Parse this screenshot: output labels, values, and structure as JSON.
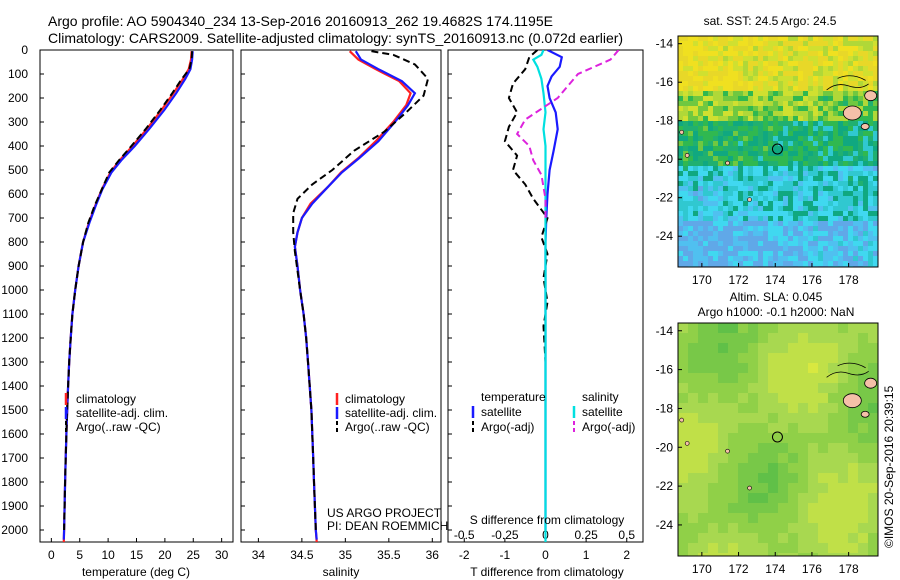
{
  "header": {
    "line1": "Argo profile: AO 5904340_234 13-Sep-2016 20160913_262 19.4682S 174.1195E",
    "line2": "Climatology: CARS2009. Satellite-adjusted climatology: synTS_20160913.nc (0.072d earlier)"
  },
  "colors": {
    "climatology": "#ff2020",
    "satellite_adj": "#1a1aff",
    "argo": "#000000",
    "s_satellite": "#00e0e0",
    "s_argo": "#dd22dd",
    "land": "#f5c0a8"
  },
  "chart_data": [
    {
      "type": "line",
      "panel": "temperature",
      "xlabel": "temperature (deg C)",
      "xlim": [
        -2,
        32
      ],
      "ylim": [
        2050,
        0
      ],
      "xticks": [
        "0",
        "5",
        "10",
        "15",
        "20",
        "25",
        "30"
      ],
      "yticks": [
        "0",
        "100",
        "200",
        "300",
        "400",
        "500",
        "600",
        "700",
        "800",
        "900",
        "1000",
        "1100",
        "1200",
        "1300",
        "1400",
        "1500",
        "1600",
        "1700",
        "1800",
        "1900",
        "2000"
      ],
      "legend": [
        "climatology",
        "satellite-adj. clim.",
        "Argo(..raw -QC)"
      ],
      "series": [
        {
          "name": "climatology",
          "color": "#ff2020",
          "points": [
            [
              24.7,
              5
            ],
            [
              24.6,
              40
            ],
            [
              24.2,
              80
            ],
            [
              23.2,
              120
            ],
            [
              21.5,
              180
            ],
            [
              19.4,
              250
            ],
            [
              16.8,
              330
            ],
            [
              14.3,
              400
            ],
            [
              12.0,
              460
            ],
            [
              10.4,
              510
            ],
            [
              8.9,
              580
            ],
            [
              7.7,
              650
            ],
            [
              6.6,
              720
            ],
            [
              5.6,
              800
            ],
            [
              4.8,
              900
            ],
            [
              4.2,
              1000
            ],
            [
              3.7,
              1100
            ],
            [
              3.4,
              1200
            ],
            [
              3.15,
              1300
            ],
            [
              2.95,
              1400
            ],
            [
              2.8,
              1500
            ],
            [
              2.65,
              1600
            ],
            [
              2.52,
              1700
            ],
            [
              2.42,
              1800
            ],
            [
              2.33,
              1900
            ],
            [
              2.25,
              2000
            ],
            [
              2.2,
              2050
            ]
          ]
        },
        {
          "name": "satellite-adj. clim.",
          "color": "#1a1aff",
          "points": [
            [
              24.9,
              5
            ],
            [
              24.8,
              40
            ],
            [
              24.5,
              80
            ],
            [
              23.6,
              120
            ],
            [
              22.0,
              180
            ],
            [
              19.9,
              250
            ],
            [
              17.2,
              330
            ],
            [
              14.7,
              400
            ],
            [
              12.3,
              460
            ],
            [
              10.6,
              510
            ],
            [
              9.0,
              580
            ],
            [
              7.8,
              650
            ],
            [
              6.7,
              720
            ],
            [
              5.6,
              800
            ],
            [
              4.8,
              900
            ],
            [
              4.2,
              1000
            ],
            [
              3.7,
              1100
            ],
            [
              3.4,
              1200
            ],
            [
              3.15,
              1300
            ],
            [
              2.95,
              1400
            ],
            [
              2.8,
              1500
            ],
            [
              2.65,
              1600
            ],
            [
              2.52,
              1700
            ],
            [
              2.42,
              1800
            ],
            [
              2.33,
              1900
            ],
            [
              2.25,
              2000
            ],
            [
              2.2,
              2040
            ]
          ]
        },
        {
          "name": "Argo(..raw -QC)",
          "color": "#000000",
          "dashed": true,
          "points": [
            [
              24.8,
              5
            ],
            [
              24.7,
              40
            ],
            [
              24.3,
              80
            ],
            [
              23.0,
              120
            ],
            [
              21.3,
              180
            ],
            [
              19.2,
              250
            ],
            [
              16.6,
              330
            ],
            [
              14.1,
              400
            ],
            [
              11.9,
              460
            ],
            [
              10.2,
              510
            ],
            [
              8.9,
              580
            ],
            [
              7.6,
              650
            ],
            [
              6.5,
              720
            ],
            [
              5.6,
              800
            ],
            [
              4.8,
              900
            ],
            [
              4.2,
              1000
            ],
            [
              3.7,
              1100
            ],
            [
              3.4,
              1200
            ],
            [
              3.15,
              1300
            ],
            [
              2.95,
              1400
            ],
            [
              2.8,
              1500
            ],
            [
              2.65,
              1600
            ],
            [
              2.52,
              1700
            ],
            [
              2.42,
              1800
            ],
            [
              2.33,
              1900
            ],
            [
              2.25,
              2000
            ]
          ]
        }
      ]
    },
    {
      "type": "line",
      "panel": "salinity",
      "xlabel": "salinity",
      "xlim": [
        33.8,
        36.1
      ],
      "ylim": [
        2050,
        0
      ],
      "xticks": [
        "34",
        "34.5",
        "35",
        "35.5",
        "36"
      ],
      "legend": [
        "climatology",
        "satellite-adj. clim.",
        "Argo(..raw -QC)"
      ],
      "annotations": [
        "US ARGO PROJECT",
        "PI: DEAN ROEMMICH"
      ],
      "series": [
        {
          "name": "climatology",
          "color": "#ff2020",
          "points": [
            [
              35.05,
              5
            ],
            [
              35.15,
              40
            ],
            [
              35.35,
              80
            ],
            [
              35.62,
              130
            ],
            [
              35.75,
              180
            ],
            [
              35.7,
              230
            ],
            [
              35.55,
              300
            ],
            [
              35.35,
              380
            ],
            [
              35.15,
              450
            ],
            [
              34.95,
              510
            ],
            [
              34.8,
              570
            ],
            [
              34.6,
              640
            ],
            [
              34.5,
              700
            ],
            [
              34.45,
              760
            ],
            [
              34.42,
              820
            ],
            [
              34.45,
              900
            ],
            [
              34.48,
              1000
            ],
            [
              34.52,
              1100
            ],
            [
              34.55,
              1200
            ],
            [
              34.57,
              1300
            ],
            [
              34.59,
              1400
            ],
            [
              34.61,
              1500
            ],
            [
              34.62,
              1600
            ],
            [
              34.63,
              1700
            ],
            [
              34.64,
              1800
            ],
            [
              34.65,
              1900
            ],
            [
              34.66,
              2000
            ],
            [
              34.67,
              2050
            ]
          ]
        },
        {
          "name": "satellite-adj. clim.",
          "color": "#1a1aff",
          "points": [
            [
              35.12,
              5
            ],
            [
              35.18,
              40
            ],
            [
              35.38,
              80
            ],
            [
              35.65,
              130
            ],
            [
              35.8,
              180
            ],
            [
              35.72,
              230
            ],
            [
              35.57,
              300
            ],
            [
              35.38,
              380
            ],
            [
              35.16,
              450
            ],
            [
              34.96,
              510
            ],
            [
              34.8,
              570
            ],
            [
              34.62,
              640
            ],
            [
              34.5,
              700
            ],
            [
              34.45,
              760
            ],
            [
              34.42,
              820
            ],
            [
              34.45,
              900
            ],
            [
              34.48,
              1000
            ],
            [
              34.52,
              1100
            ],
            [
              34.55,
              1200
            ],
            [
              34.57,
              1300
            ],
            [
              34.59,
              1400
            ],
            [
              34.61,
              1500
            ],
            [
              34.62,
              1600
            ],
            [
              34.63,
              1700
            ],
            [
              34.64,
              1800
            ],
            [
              34.65,
              1900
            ],
            [
              34.66,
              2000
            ],
            [
              34.67,
              2040
            ]
          ]
        },
        {
          "name": "Argo(..raw -QC)",
          "color": "#000000",
          "dashed": true,
          "points": [
            [
              35.3,
              5
            ],
            [
              35.55,
              20
            ],
            [
              35.8,
              60
            ],
            [
              35.95,
              120
            ],
            [
              35.9,
              190
            ],
            [
              35.7,
              260
            ],
            [
              35.45,
              340
            ],
            [
              35.1,
              420
            ],
            [
              34.85,
              500
            ],
            [
              34.62,
              560
            ],
            [
              34.45,
              620
            ],
            [
              34.4,
              680
            ],
            [
              34.4,
              760
            ],
            [
              34.42,
              840
            ],
            [
              34.45,
              920
            ],
            [
              34.48,
              1000
            ],
            [
              34.52,
              1100
            ],
            [
              34.55,
              1200
            ],
            [
              34.57,
              1300
            ],
            [
              34.59,
              1400
            ],
            [
              34.61,
              1500
            ],
            [
              34.62,
              1600
            ],
            [
              34.63,
              1700
            ],
            [
              34.64,
              1800
            ],
            [
              34.65,
              1900
            ],
            [
              34.66,
              2000
            ]
          ]
        }
      ]
    },
    {
      "type": "line",
      "panel": "difference",
      "xlabel": "T difference from climatology",
      "xlabel_top": "S difference from climatology",
      "xlim": [
        -2.4,
        2.4
      ],
      "ylim": [
        2050,
        0
      ],
      "xticks_bottom": [
        "-2",
        "-1",
        "0",
        "1",
        "2"
      ],
      "xticks_top": [
        "-0.5",
        "-0.25",
        "0",
        "0.25",
        "0.5"
      ],
      "legend": {
        "temperature_header": "temperature",
        "salinity_header": "salinity",
        "items": [
          "satellite",
          "Argo(-adj)",
          "satellite",
          "Argo(-adj)"
        ]
      },
      "series": [
        {
          "name": "temperature satellite",
          "color": "#1a1aff",
          "points": [
            [
              0.05,
              0
            ],
            [
              0.4,
              30
            ],
            [
              0.35,
              70
            ],
            [
              0.15,
              110
            ],
            [
              0.05,
              150
            ],
            [
              0.1,
              200
            ],
            [
              0.25,
              260
            ],
            [
              0.3,
              330
            ],
            [
              0.2,
              420
            ],
            [
              0.1,
              500
            ],
            [
              0.05,
              600
            ],
            [
              0.02,
              700
            ],
            [
              0,
              800
            ],
            [
              0,
              2000
            ]
          ]
        },
        {
          "name": "temperature Argo(-adj)",
          "color": "#000000",
          "dashed": true,
          "points": [
            [
              -0.2,
              0
            ],
            [
              -0.4,
              30
            ],
            [
              -0.5,
              80
            ],
            [
              -0.8,
              140
            ],
            [
              -0.9,
              200
            ],
            [
              -0.7,
              260
            ],
            [
              -0.9,
              320
            ],
            [
              -1.0,
              380
            ],
            [
              -0.7,
              440
            ],
            [
              -0.8,
              500
            ],
            [
              -0.5,
              560
            ],
            [
              -0.3,
              620
            ],
            [
              0.05,
              700
            ],
            [
              -0.1,
              780
            ],
            [
              0.05,
              850
            ],
            [
              -0.05,
              950
            ],
            [
              0.05,
              1050
            ],
            [
              -0.05,
              1150
            ],
            [
              0,
              1300
            ],
            [
              0,
              2000
            ]
          ]
        },
        {
          "name": "salinity satellite",
          "color": "#00e0e0",
          "points": [
            [
              -0.05,
              0
            ],
            [
              -0.1,
              20
            ],
            [
              -0.3,
              40
            ],
            [
              -0.2,
              70
            ],
            [
              -0.1,
              120
            ],
            [
              -0.05,
              180
            ],
            [
              0,
              260
            ],
            [
              -0.05,
              330
            ],
            [
              0,
              400
            ],
            [
              0,
              2050
            ]
          ]
        },
        {
          "name": "salinity Argo(-adj)",
          "color": "#dd22dd",
          "dashed": true,
          "points": [
            [
              1.8,
              0
            ],
            [
              1.6,
              40
            ],
            [
              0.8,
              100
            ],
            [
              0.3,
              200
            ],
            [
              -0.5,
              290
            ],
            [
              -0.7,
              350
            ],
            [
              -0.4,
              400
            ],
            [
              -0.3,
              460
            ],
            [
              -0.1,
              520
            ],
            [
              0,
              620
            ],
            [
              0,
              700
            ]
          ]
        }
      ]
    },
    {
      "type": "heatmap",
      "panel": "sst_map",
      "title": "sat. SST: 24.5 Argo: 24.5",
      "xlim": [
        168.7,
        179.6
      ],
      "ylim": [
        -25.6,
        -13.6
      ],
      "xticks": [
        "170",
        "172",
        "174",
        "176",
        "178"
      ],
      "yticks": [
        "-14",
        "-16",
        "-18",
        "-20",
        "-22",
        "-24"
      ],
      "argo_position": [
        174.12,
        -19.47
      ]
    },
    {
      "type": "heatmap",
      "panel": "sla_map",
      "title_line1": "Altim. SLA: 0.045",
      "title_line2": "Argo h1000: -0.1 h2000: NaN",
      "xlim": [
        168.7,
        179.6
      ],
      "ylim": [
        -25.6,
        -13.6
      ],
      "xticks": [
        "170",
        "172",
        "174",
        "176",
        "178"
      ],
      "yticks": [
        "-14",
        "-16",
        "-18",
        "-20",
        "-22",
        "-24"
      ],
      "argo_position": [
        174.12,
        -19.47
      ]
    }
  ],
  "footer": {
    "credit": "©IMOS 20-Sep-2016 20:39:15"
  }
}
